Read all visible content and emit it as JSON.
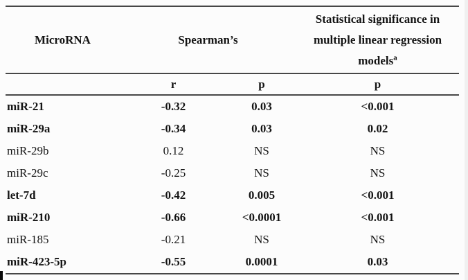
{
  "colors": {
    "background": "#fcfcfc",
    "text": "#141414",
    "rule": "#474747",
    "edge_strip": "#f0f0f0",
    "artifact": "#0a0a0a"
  },
  "table": {
    "header": {
      "microrna": "MicroRNA",
      "spearmans": "Spearman’s",
      "regression_lines": [
        "Statistical significance in",
        "multiple linear regression",
        "models"
      ],
      "regression_footnote_marker": "a"
    },
    "subheader": {
      "r": "r",
      "p_spearman": "p",
      "p_regression": "p"
    },
    "rows": [
      {
        "mirna": "miR-21",
        "r": "-0.32",
        "p": "0.03",
        "regression_p": "<0.001",
        "bold": true
      },
      {
        "mirna": "miR-29a",
        "r": "-0.34",
        "p": "0.03",
        "regression_p": "0.02",
        "bold": true
      },
      {
        "mirna": "miR-29b",
        "r": "0.12",
        "p": "NS",
        "regression_p": "NS",
        "bold": false
      },
      {
        "mirna": "miR-29c",
        "r": "-0.25",
        "p": "NS",
        "regression_p": "NS",
        "bold": false
      },
      {
        "mirna": "let-7d",
        "r": "-0.42",
        "p": "0.005",
        "regression_p": "<0.001",
        "bold": true
      },
      {
        "mirna": "miR-210",
        "r": "-0.66",
        "p": "<0.0001",
        "regression_p": "<0.001",
        "bold": true
      },
      {
        "mirna": "miR-185",
        "r": "-0.21",
        "p": "NS",
        "regression_p": "NS",
        "bold": false
      },
      {
        "mirna": "miR-423-5p",
        "r": "-0.55",
        "p": "0.0001",
        "regression_p": "0.03",
        "bold": true
      }
    ]
  }
}
